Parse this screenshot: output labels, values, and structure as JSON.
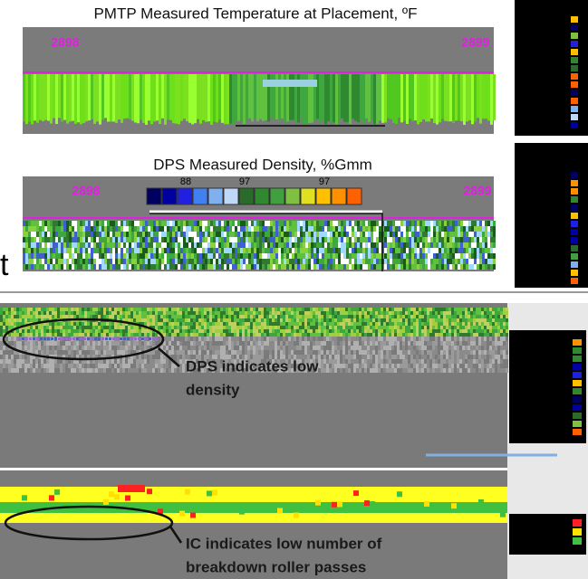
{
  "top_panel": {
    "title": "PMTP Measured Temperature at Placement, ºF",
    "station_left": "2898",
    "station_right": "2899"
  },
  "middle_panel": {
    "title": "DPS Measured Density, %Gmm",
    "station_left": "2898",
    "station_right": "2899",
    "scale_labels": [
      "88",
      "97",
      "97"
    ]
  },
  "side_letter": "t",
  "bottom_panel": {
    "annotation_1": [
      "DPS indicates low",
      "density"
    ],
    "annotation_2": [
      "IC indicates low number of",
      "breakdown roller passes"
    ]
  }
}
